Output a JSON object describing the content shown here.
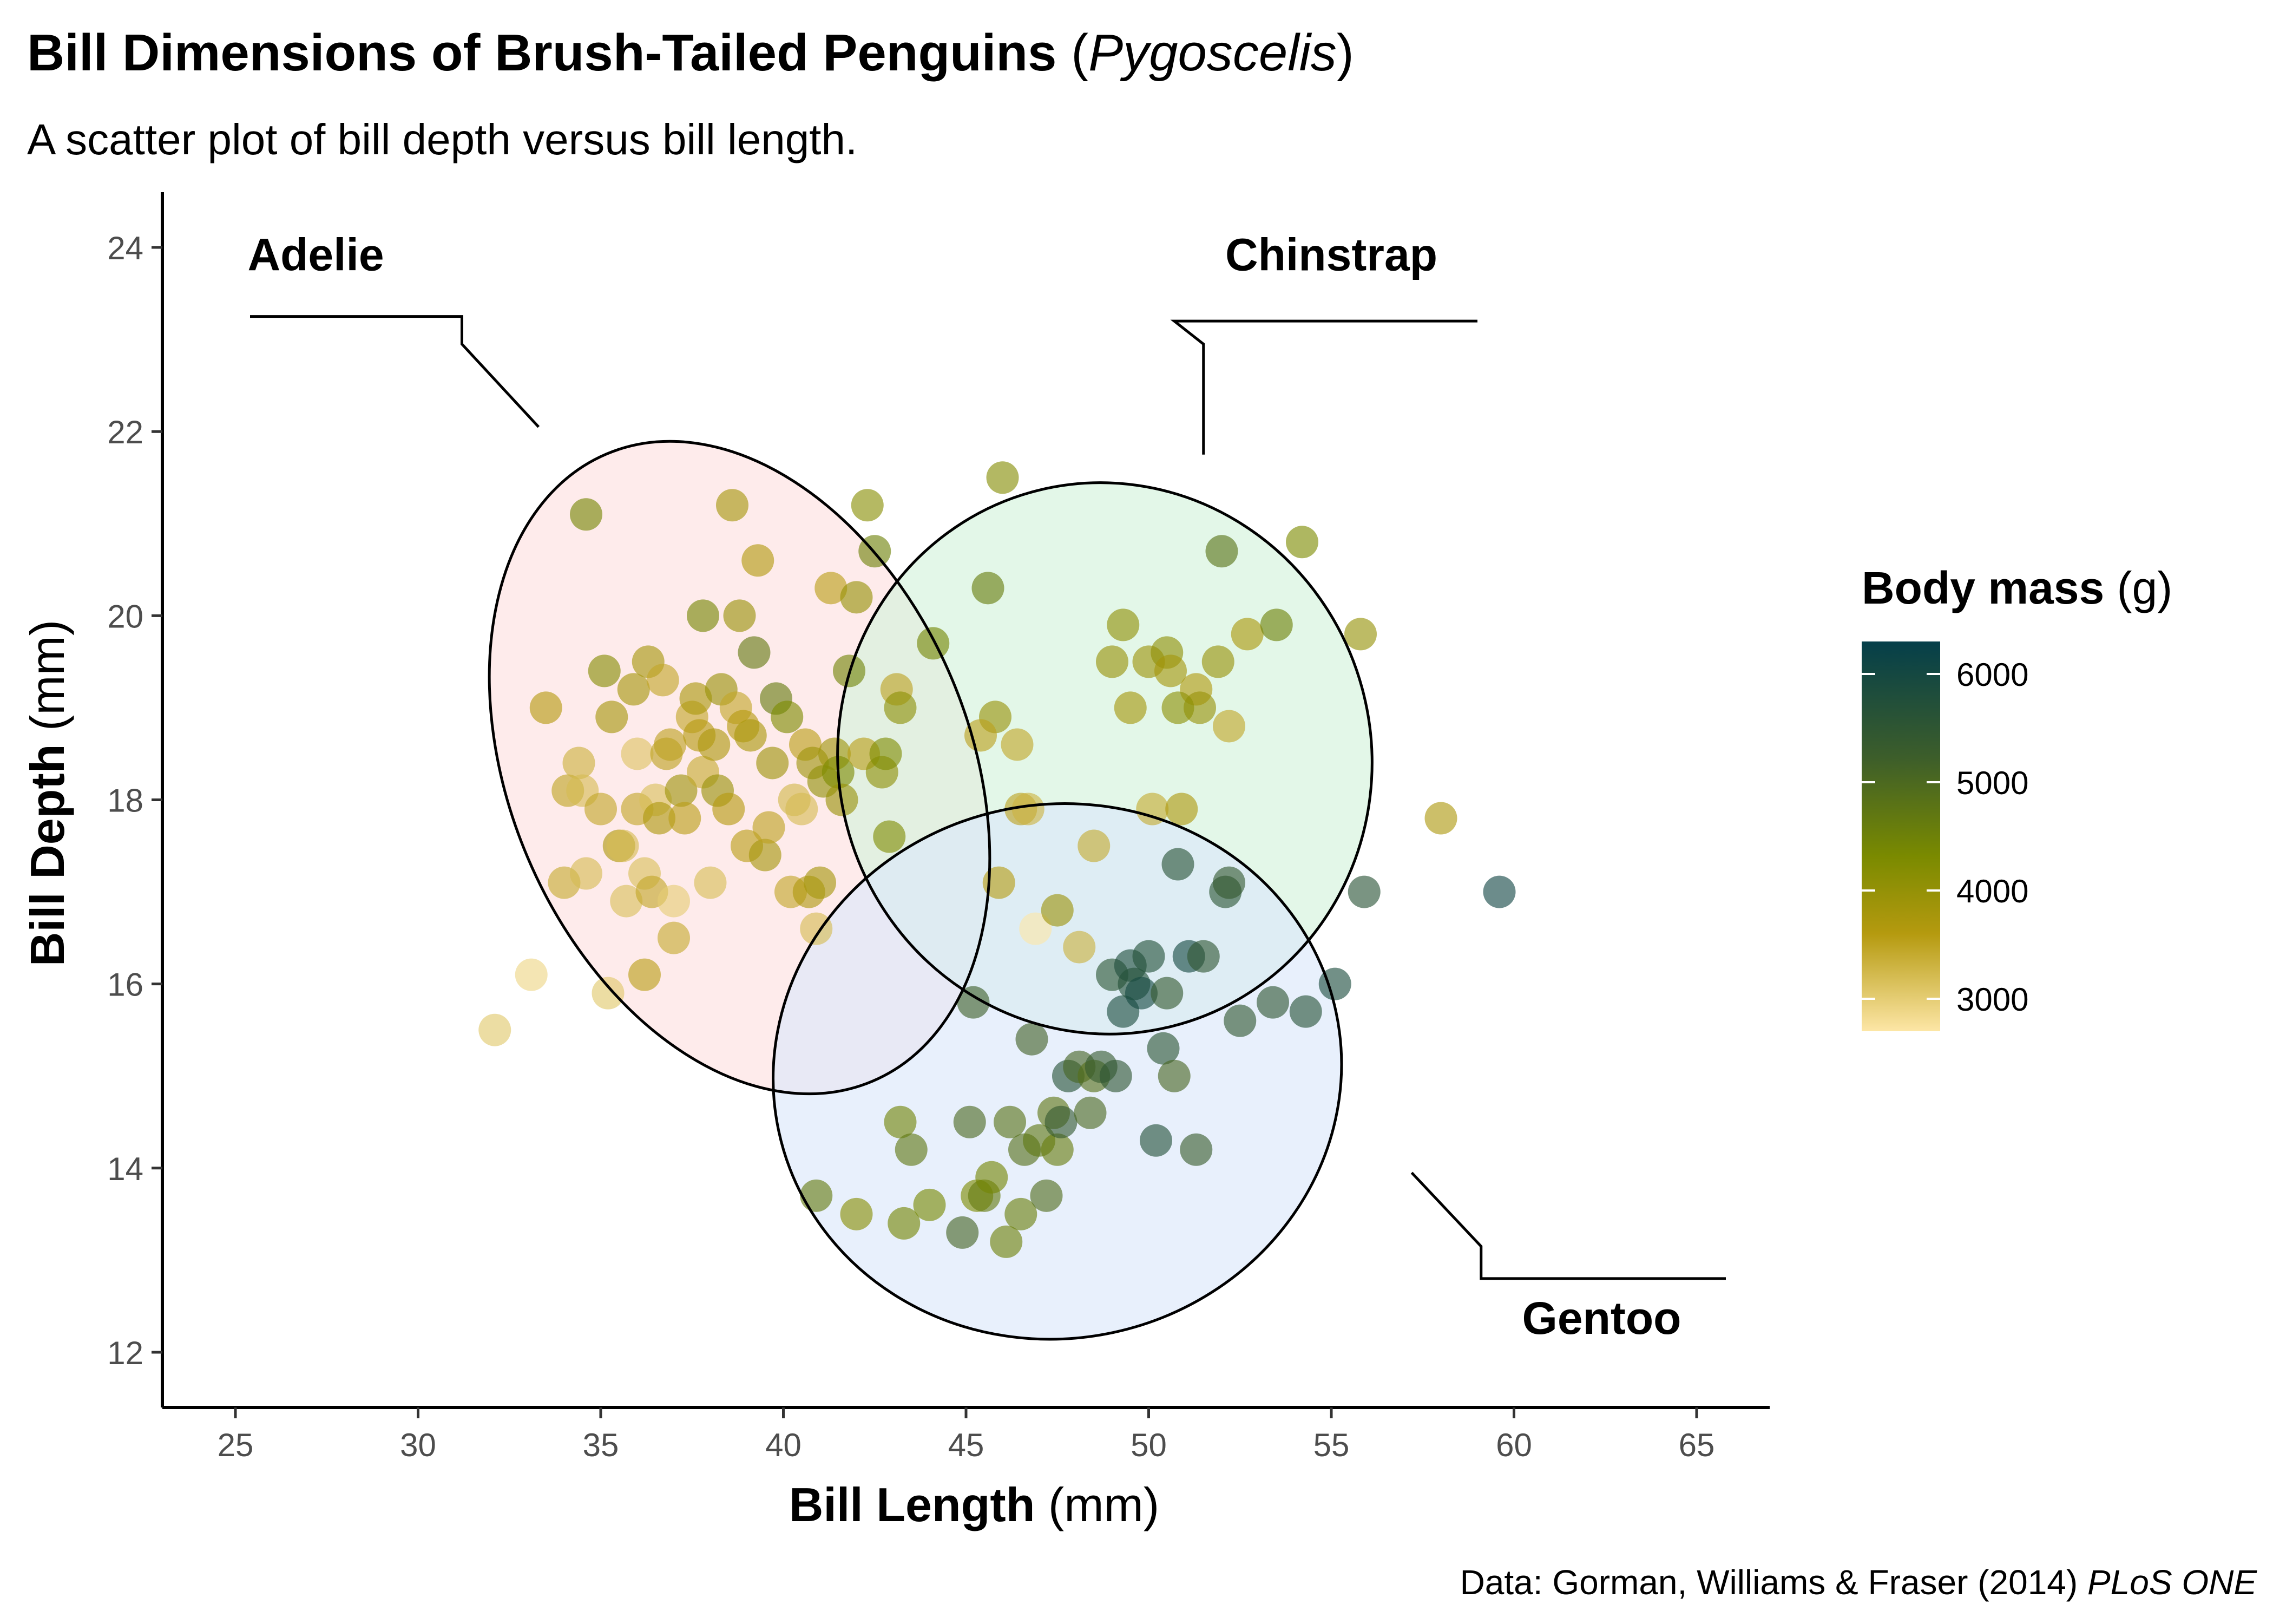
{
  "title": {
    "main": "Bill Dimensions of Brush-Tailed Penguins",
    "genus_open": " (",
    "genus": "Pygoscelis",
    "genus_close": ")"
  },
  "subtitle": "A scatter plot of bill depth versus bill length.",
  "caption": {
    "text": "Data: Gorman, Williams & Fraser (2014) ",
    "journal": "PLoS ONE"
  },
  "colors": {
    "low": "#fde6a6",
    "mid_low": "#b59a0f",
    "mid": "#7a8a00",
    "mid_high": "#3d5e2a",
    "high": "#053f4a"
  },
  "chart_data": {
    "type": "scatter",
    "title": "Bill Dimensions of Brush-Tailed Penguins (Pygoscelis)",
    "subtitle": "A scatter plot of bill depth versus bill length.",
    "xlabel": {
      "bold": "Bill Length",
      "unit": " (mm)"
    },
    "ylabel": {
      "bold": "Bill Depth",
      "unit": " (mm)"
    },
    "xlim": [
      23,
      67
    ],
    "ylim": [
      11.4,
      24.6
    ],
    "xticks": [
      25,
      30,
      35,
      40,
      45,
      50,
      55,
      60,
      65
    ],
    "yticks": [
      12,
      14,
      16,
      18,
      20,
      22,
      24
    ],
    "grid": false,
    "legend": {
      "title_bold": "Body mass",
      "title_unit": " (g)",
      "position": "right",
      "range": [
        2700,
        6300
      ],
      "ticks": [
        3000,
        4000,
        5000,
        6000
      ]
    },
    "groups": [
      {
        "name": "Adelie",
        "fill": "#fde0e0",
        "ellipse": {
          "cx": 38.8,
          "cy": 18.35,
          "rx": 6.3,
          "ry": 3.7,
          "angle": 23
        }
      },
      {
        "name": "Chinstrap",
        "fill": "#d4f2dc",
        "ellipse": {
          "cx": 48.8,
          "cy": 18.45,
          "rx": 7.3,
          "ry": 3.0,
          "angle": 14
        }
      },
      {
        "name": "Gentoo",
        "fill": "#dce8fb",
        "ellipse": {
          "cx": 47.5,
          "cy": 15.05,
          "rx": 7.8,
          "ry": 2.9,
          "angle": 12
        }
      }
    ],
    "points": [
      [
        32.1,
        15.5,
        3050
      ],
      [
        33.1,
        16.1,
        2900
      ],
      [
        33.5,
        19.0,
        3600
      ],
      [
        34.0,
        17.1,
        3400
      ],
      [
        34.1,
        18.1,
        3475
      ],
      [
        34.4,
        18.4,
        3325
      ],
      [
        34.5,
        18.1,
        3200
      ],
      [
        34.6,
        21.1,
        4400
      ],
      [
        34.6,
        17.2,
        3200
      ],
      [
        35.0,
        17.9,
        3450
      ],
      [
        35.1,
        19.4,
        4200
      ],
      [
        35.2,
        15.9,
        3050
      ],
      [
        35.3,
        18.9,
        3800
      ],
      [
        35.5,
        17.5,
        3700
      ],
      [
        35.6,
        17.5,
        3200
      ],
      [
        35.7,
        16.9,
        3150
      ],
      [
        35.9,
        19.2,
        3800
      ],
      [
        36.0,
        17.9,
        3450
      ],
      [
        36.0,
        18.5,
        3100
      ],
      [
        36.2,
        17.2,
        3150
      ],
      [
        36.2,
        16.1,
        3550
      ],
      [
        36.3,
        19.5,
        3800
      ],
      [
        36.4,
        17.0,
        3450
      ],
      [
        36.5,
        18.0,
        3150
      ],
      [
        36.6,
        17.8,
        3700
      ],
      [
        36.7,
        19.3,
        3450
      ],
      [
        36.8,
        18.5,
        3500
      ],
      [
        36.9,
        18.6,
        3500
      ],
      [
        37.0,
        16.9,
        3000
      ],
      [
        37.0,
        16.5,
        3400
      ],
      [
        37.2,
        18.1,
        3900
      ],
      [
        37.3,
        17.8,
        3550
      ],
      [
        37.5,
        18.9,
        3450
      ],
      [
        37.6,
        19.1,
        3750
      ],
      [
        37.7,
        18.7,
        3600
      ],
      [
        37.8,
        18.3,
        3400
      ],
      [
        37.8,
        20.0,
        4400
      ],
      [
        38.0,
        17.1,
        3175
      ],
      [
        38.1,
        18.6,
        3700
      ],
      [
        38.2,
        18.1,
        3950
      ],
      [
        38.3,
        19.2,
        3950
      ],
      [
        38.5,
        17.9,
        3600
      ],
      [
        38.6,
        21.2,
        3800
      ],
      [
        38.7,
        19.0,
        3450
      ],
      [
        38.8,
        20.0,
        3950
      ],
      [
        38.9,
        18.8,
        3600
      ],
      [
        39.0,
        17.5,
        3550
      ],
      [
        39.1,
        18.7,
        3750
      ],
      [
        39.2,
        19.6,
        4675
      ],
      [
        39.3,
        20.6,
        3650
      ],
      [
        39.5,
        17.4,
        3800
      ],
      [
        39.6,
        17.7,
        3500
      ],
      [
        39.7,
        18.4,
        3900
      ],
      [
        39.8,
        19.1,
        4650
      ],
      [
        40.1,
        18.9,
        4300
      ],
      [
        40.2,
        17.0,
        3450
      ],
      [
        40.3,
        18.0,
        3250
      ],
      [
        40.5,
        17.9,
        3200
      ],
      [
        40.6,
        18.6,
        3550
      ],
      [
        40.7,
        17.0,
        3675
      ],
      [
        40.8,
        18.4,
        3900
      ],
      [
        40.9,
        16.6,
        3200
      ],
      [
        41.0,
        17.1,
        3800
      ],
      [
        41.1,
        18.2,
        4050
      ],
      [
        41.3,
        20.3,
        3550
      ],
      [
        41.4,
        18.5,
        3875
      ],
      [
        41.5,
        18.3,
        4300
      ],
      [
        41.6,
        18.0,
        3950
      ],
      [
        41.8,
        19.4,
        4450
      ],
      [
        42.0,
        20.2,
        4000
      ],
      [
        42.2,
        18.5,
        3550
      ],
      [
        42.3,
        21.2,
        4150
      ],
      [
        42.5,
        20.7,
        4500
      ],
      [
        42.7,
        18.3,
        4075
      ],
      [
        42.8,
        18.5,
        4250
      ],
      [
        42.9,
        17.6,
        4250
      ],
      [
        43.1,
        19.2,
        3500
      ],
      [
        43.2,
        19.0,
        4100
      ],
      [
        44.1,
        19.7,
        4400
      ],
      [
        45.6,
        20.3,
        4600
      ],
      [
        45.8,
        18.9,
        3950
      ],
      [
        46.0,
        21.5,
        4200
      ],
      [
        46.4,
        18.6,
        3450
      ],
      [
        46.9,
        16.6,
        2700
      ],
      [
        46.5,
        17.9,
        3500
      ],
      [
        47.5,
        16.8,
        3900
      ],
      [
        48.1,
        16.4,
        3325
      ],
      [
        48.5,
        17.5,
        3400
      ],
      [
        49.0,
        19.5,
        3950
      ],
      [
        49.3,
        19.9,
        4050
      ],
      [
        50.0,
        19.5,
        3900
      ],
      [
        50.1,
        17.9,
        3400
      ],
      [
        50.5,
        19.6,
        4050
      ],
      [
        50.9,
        17.9,
        3675
      ],
      [
        51.3,
        19.2,
        3650
      ],
      [
        51.4,
        19.0,
        3950
      ],
      [
        52.0,
        20.7,
        4800
      ],
      [
        52.7,
        19.8,
        3725
      ],
      [
        53.5,
        19.9,
        4500
      ],
      [
        54.2,
        20.8,
        4300
      ],
      [
        55.8,
        19.8,
        4000
      ],
      [
        58.0,
        17.8,
        3700
      ],
      [
        50.6,
        19.4,
        3800
      ],
      [
        46.7,
        17.9,
        3300
      ],
      [
        52.2,
        18.8,
        3450
      ],
      [
        49.5,
        19.0,
        3800
      ],
      [
        50.8,
        19.0,
        4100
      ],
      [
        51.9,
        19.5,
        3950
      ],
      [
        45.4,
        18.7,
        3525
      ],
      [
        45.9,
        17.1,
        3575
      ],
      [
        40.9,
        13.7,
        4650
      ],
      [
        42.0,
        13.5,
        4150
      ],
      [
        43.2,
        14.5,
        4450
      ],
      [
        43.5,
        14.2,
        4700
      ],
      [
        44.0,
        13.6,
        4350
      ],
      [
        44.9,
        13.3,
        5100
      ],
      [
        45.1,
        14.5,
        5000
      ],
      [
        45.3,
        13.7,
        4300
      ],
      [
        45.5,
        13.7,
        4650
      ],
      [
        45.7,
        13.9,
        4400
      ],
      [
        46.1,
        13.2,
        4500
      ],
      [
        46.2,
        14.5,
        4800
      ],
      [
        46.5,
        13.5,
        4550
      ],
      [
        46.6,
        14.2,
        4850
      ],
      [
        46.8,
        15.4,
        5150
      ],
      [
        47.0,
        14.3,
        4700
      ],
      [
        47.2,
        13.7,
        4925
      ],
      [
        47.4,
        14.6,
        4725
      ],
      [
        47.5,
        14.2,
        4600
      ],
      [
        47.6,
        14.5,
        5400
      ],
      [
        47.8,
        15.0,
        5650
      ],
      [
        48.1,
        15.1,
        5100
      ],
      [
        48.4,
        14.6,
        5000
      ],
      [
        48.5,
        15.0,
        4850
      ],
      [
        48.7,
        15.1,
        5350
      ],
      [
        49.0,
        16.1,
        5550
      ],
      [
        49.1,
        15.0,
        5500
      ],
      [
        49.3,
        15.7,
        5850
      ],
      [
        49.5,
        16.2,
        5800
      ],
      [
        49.6,
        16.0,
        5700
      ],
      [
        49.8,
        15.9,
        6000
      ],
      [
        50.0,
        16.3,
        5700
      ],
      [
        50.2,
        14.3,
        5700
      ],
      [
        50.4,
        15.3,
        5550
      ],
      [
        50.5,
        15.9,
        5400
      ],
      [
        50.7,
        15.0,
        5050
      ],
      [
        50.8,
        17.3,
        5600
      ],
      [
        51.1,
        16.3,
        6000
      ],
      [
        51.3,
        14.2,
        5300
      ],
      [
        51.5,
        16.3,
        5500
      ],
      [
        52.1,
        17.0,
        5550
      ],
      [
        52.2,
        17.1,
        5400
      ],
      [
        52.5,
        15.6,
        5450
      ],
      [
        53.4,
        15.8,
        5500
      ],
      [
        54.3,
        15.7,
        5650
      ],
      [
        55.1,
        16.0,
        5850
      ],
      [
        55.9,
        17.0,
        5600
      ],
      [
        59.6,
        17.0,
        6050
      ],
      [
        43.3,
        13.4,
        4400
      ],
      [
        45.2,
        15.8,
        5200
      ]
    ]
  }
}
